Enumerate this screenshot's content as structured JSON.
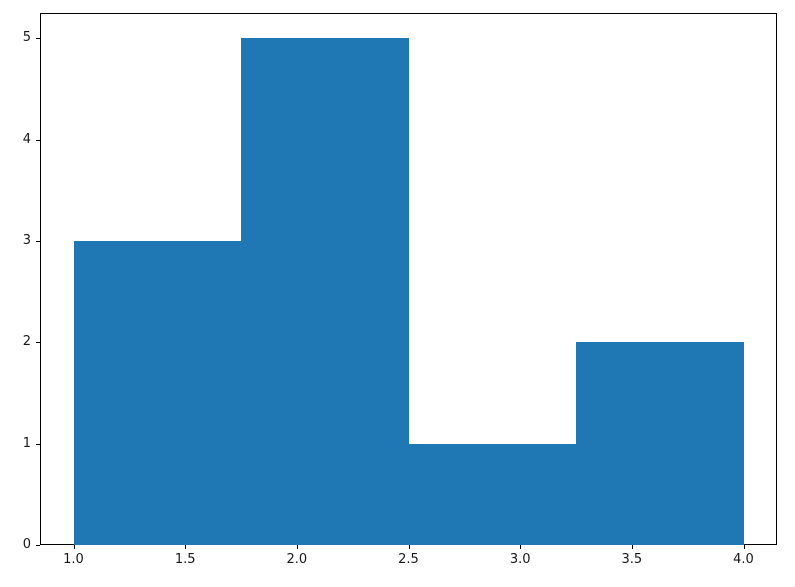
{
  "figure": {
    "background_color": "#ffffff",
    "spine_color": "#000000",
    "tick_text_color": "#1a1a1a"
  },
  "chart_data": {
    "type": "bar",
    "histogram": true,
    "title": "",
    "xlabel": "",
    "ylabel": "",
    "bin_edges": [
      1.0,
      1.75,
      2.5,
      3.25,
      4.0
    ],
    "values": [
      3,
      5,
      1,
      2
    ],
    "bar_color": "#1f77b4",
    "xlim": [
      0.85,
      4.15
    ],
    "ylim": [
      0,
      5.25
    ],
    "x_ticks": [
      1.0,
      1.5,
      2.0,
      2.5,
      3.0,
      3.5,
      4.0
    ],
    "x_tick_labels": [
      "1.0",
      "1.5",
      "2.0",
      "2.5",
      "3.0",
      "3.5",
      "4.0"
    ],
    "y_ticks": [
      0,
      1,
      2,
      3,
      4,
      5
    ],
    "y_tick_labels": [
      "0",
      "1",
      "2",
      "3",
      "4",
      "5"
    ],
    "grid": false,
    "legend": null
  }
}
